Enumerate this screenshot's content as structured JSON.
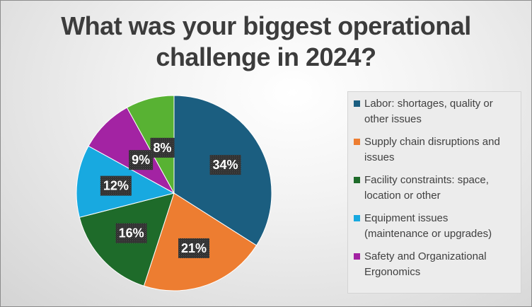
{
  "chart_data": {
    "type": "pie",
    "title_lines": [
      "What was your biggest operational",
      "challenge in 2024?"
    ],
    "slices": [
      {
        "label": "Labor: shortages, quality or other issues",
        "value": 34,
        "display": "34%",
        "color": "#1b5e80"
      },
      {
        "label": "Supply chain disruptions and issues",
        "value": 21,
        "display": "21%",
        "color": "#ed7d31"
      },
      {
        "label": "Facility constraints: space, location or other",
        "value": 16,
        "display": "16%",
        "color": "#1e6b2a"
      },
      {
        "label": "Equipment issues (maintenance or upgrades)",
        "value": 12,
        "display": "12%",
        "color": "#18a9e0"
      },
      {
        "label": "Safety and Organizational Ergonomics",
        "value": 9,
        "display": "9%",
        "color": "#a323a3"
      },
      {
        "label": "",
        "value": 8,
        "display": "8%",
        "color": "#58b233"
      }
    ],
    "legend_position": "right"
  }
}
